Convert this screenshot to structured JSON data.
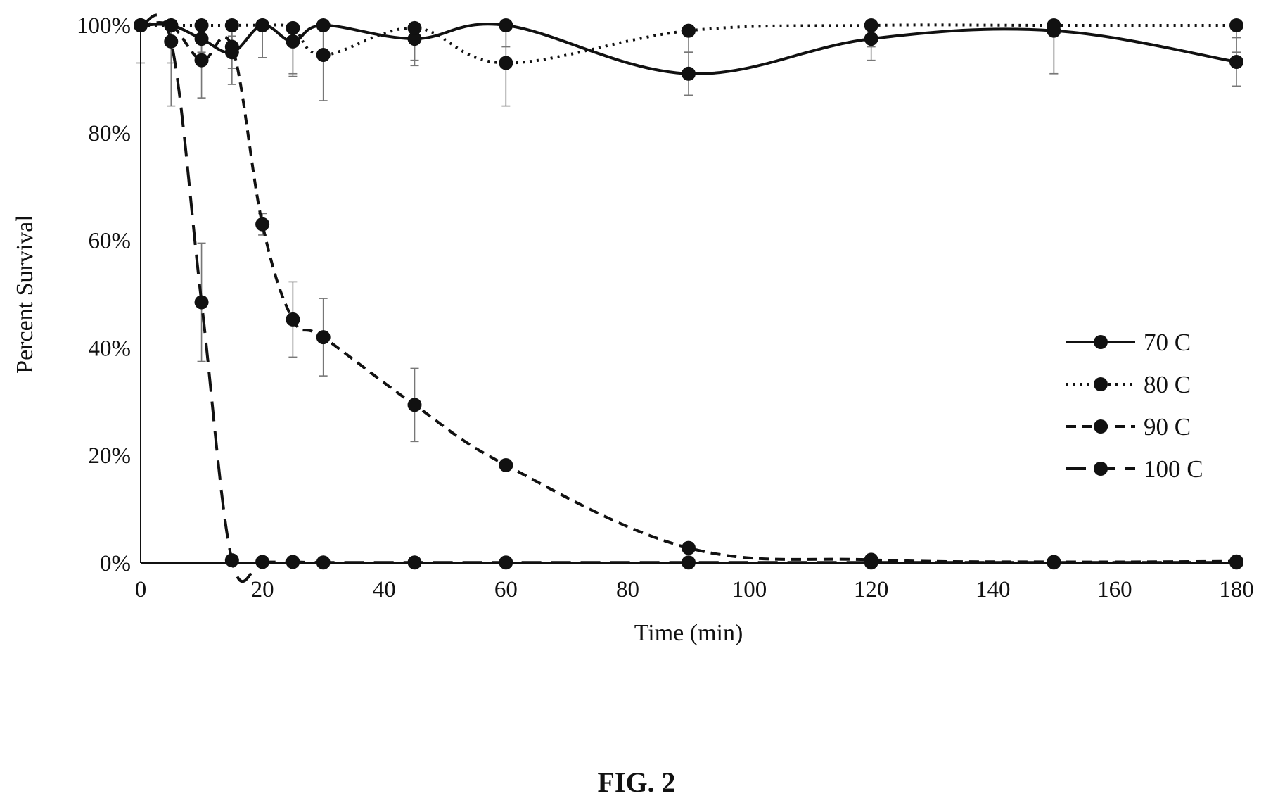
{
  "figure": {
    "caption": "FIG. 2"
  },
  "chart_data": {
    "type": "line",
    "title": "",
    "xlabel": "Time (min)",
    "ylabel": "Percent Survival",
    "xlim": [
      0,
      180
    ],
    "ylim": [
      0,
      100
    ],
    "xticks": [
      0,
      20,
      40,
      60,
      80,
      100,
      120,
      140,
      160,
      180
    ],
    "yticks": [
      0,
      20,
      40,
      60,
      80,
      100
    ],
    "ytick_suffix": "%",
    "grid": false,
    "legend_position": "right",
    "series": [
      {
        "name": "70 C",
        "line_style": "solid",
        "x": [
          0,
          5,
          10,
          15,
          20,
          25,
          30,
          45,
          60,
          90,
          120,
          150,
          180
        ],
        "y": [
          100,
          100,
          97.5,
          95,
          100,
          97,
          100,
          97.5,
          100,
          91,
          97.5,
          99,
          93.2
        ],
        "err": [
          0,
          0,
          3,
          3,
          6,
          6,
          6,
          4,
          4,
          4,
          4,
          8,
          4.5
        ]
      },
      {
        "name": "80 C",
        "line_style": "dotted",
        "x": [
          0,
          5,
          10,
          15,
          20,
          25,
          30,
          45,
          60,
          90,
          120,
          150,
          180
        ],
        "y": [
          100,
          100,
          100,
          100,
          100,
          99.5,
          94.5,
          99.5,
          93,
          99,
          100,
          100,
          100
        ],
        "err": [
          7,
          7,
          5,
          6,
          6,
          9,
          8.5,
          7,
          8,
          4,
          4,
          9,
          5
        ]
      },
      {
        "name": "90 C",
        "line_style": "short-dash",
        "x": [
          0,
          5,
          10,
          15,
          20,
          25,
          30,
          45,
          60,
          90,
          120,
          150,
          180
        ],
        "y": [
          100,
          100,
          93.5,
          96,
          63,
          45.3,
          42,
          29.4,
          18.2,
          2.8,
          0.6,
          0.2,
          0.3
        ],
        "err": [
          0,
          0,
          7,
          7,
          2,
          7,
          7.2,
          6.8,
          0,
          0,
          0,
          0,
          0
        ]
      },
      {
        "name": "100 C",
        "line_style": "long-dash",
        "x": [
          0,
          5,
          10,
          15,
          20,
          25,
          30,
          45,
          60,
          90,
          120,
          150,
          180
        ],
        "y": [
          100,
          97,
          48.5,
          0.5,
          0.2,
          0.2,
          0.1,
          0.1,
          0.1,
          0.1,
          0.1,
          0.1,
          0.1
        ],
        "err": [
          0,
          12,
          11,
          0,
          0,
          0,
          0,
          0,
          0,
          0,
          0,
          0,
          0
        ]
      }
    ]
  }
}
